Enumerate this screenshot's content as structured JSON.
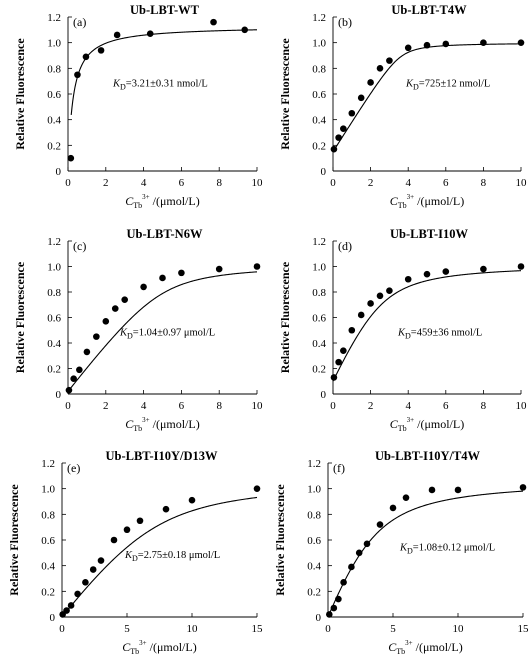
{
  "chart_data": [
    {
      "type": "scatter",
      "panel_letter": "(a)",
      "title": "Ub-LBT-WT",
      "annotation": {
        "kd_symbol": "K",
        "kd_sub": "D",
        "kd_value": "=3.21±0.31 nmol/L"
      },
      "ylabel": "Relative Fluorescence",
      "xlabel": {
        "c": "C",
        "sub": "Tb",
        "sup": "3+",
        "unit": " /(μmol/L)"
      },
      "xlim": [
        0,
        10
      ],
      "ylim": [
        0,
        1.2
      ],
      "xticks": [
        0,
        2,
        4,
        6,
        8,
        10
      ],
      "yticks": [
        0,
        0.2,
        0.4,
        0.6,
        0.8,
        1.0,
        1.2
      ],
      "ytick_labels": [
        "0",
        "0.2",
        "0.4",
        "0.6",
        "0.8",
        "1.0",
        "1.2"
      ],
      "fit": {
        "model": "hyperbolic",
        "ymax": 1.13,
        "kd": 0.27,
        "x_start": 0.17
      },
      "series": [
        {
          "x": [
            0.15,
            0.5,
            0.95,
            1.75,
            2.6,
            4.35,
            7.7,
            9.35
          ],
          "y": [
            0.1,
            0.75,
            0.89,
            0.94,
            1.06,
            1.07,
            1.16,
            1.1
          ]
        }
      ]
    },
    {
      "type": "scatter",
      "panel_letter": "(b)",
      "title": "Ub-LBT-T4W",
      "annotation": {
        "kd_symbol": "K",
        "kd_sub": "D",
        "kd_value": "=725±12 nmol/L"
      },
      "ylabel": "Relative Fluorescence",
      "xlabel": {
        "c": "C",
        "sub": "Tb",
        "sup": "3+",
        "unit": " /(μmol/L)"
      },
      "xlim": [
        0,
        10
      ],
      "ylim": [
        0,
        1.2
      ],
      "xticks": [
        0,
        2,
        4,
        6,
        8,
        10
      ],
      "yticks": [
        0,
        0.2,
        0.4,
        0.6,
        0.8,
        1.0,
        1.2
      ],
      "ytick_labels": [
        "0",
        "0.2",
        "0.4",
        "0.6",
        "0.8",
        "1.0",
        "1.2"
      ],
      "fit": {
        "model": "tight",
        "ymin": 0.15,
        "ymax": 1.0,
        "kd": 0.07,
        "p": 3.6,
        "x_start": 0
      },
      "series": [
        {
          "x": [
            0.05,
            0.3,
            0.55,
            1.0,
            1.5,
            2.0,
            2.5,
            3.0,
            4.0,
            5.0,
            6.0,
            8.0,
            10.0
          ],
          "y": [
            0.17,
            0.26,
            0.33,
            0.45,
            0.57,
            0.69,
            0.8,
            0.86,
            0.96,
            0.98,
            0.99,
            1.0,
            1.0
          ]
        }
      ]
    },
    {
      "type": "scatter",
      "panel_letter": "(c)",
      "title": "Ub-LBT-N6W",
      "annotation": {
        "kd_symbol": "K",
        "kd_sub": "D",
        "kd_value": "=1.04±0.97 μmol/L"
      },
      "ylabel": "Relative Fluorescence",
      "xlabel": {
        "c": "C",
        "sub": "Tb",
        "sup": "3+",
        "unit": " /(μmol/L)"
      },
      "xlim": [
        0,
        10
      ],
      "ylim": [
        0,
        1.2
      ],
      "xticks": [
        0,
        2,
        4,
        6,
        8,
        10
      ],
      "yticks": [
        0,
        0.2,
        0.4,
        0.6,
        0.8,
        1.0,
        1.2
      ],
      "ytick_labels": [
        "0",
        "0.2",
        "0.4",
        "0.6",
        "0.8",
        "1.0",
        "1.2"
      ],
      "fit": {
        "model": "tight",
        "ymin": 0.02,
        "ymax": 1.02,
        "kd": 0.35,
        "p": 5.0,
        "x_start": 0
      },
      "series": [
        {
          "x": [
            0.05,
            0.3,
            0.6,
            1.0,
            1.5,
            2.0,
            2.5,
            3.0,
            4.0,
            5.0,
            6.0,
            8.0,
            10.0
          ],
          "y": [
            0.03,
            0.12,
            0.19,
            0.33,
            0.45,
            0.57,
            0.67,
            0.74,
            0.84,
            0.91,
            0.95,
            0.98,
            1.0
          ]
        }
      ]
    },
    {
      "type": "scatter",
      "panel_letter": "(d)",
      "title": "Ub-LBT-I10W",
      "annotation": {
        "kd_symbol": "K",
        "kd_sub": "D",
        "kd_value": "=459±36 nmol/L"
      },
      "ylabel": "Relative Fluorescence",
      "xlabel": {
        "c": "C",
        "sub": "Tb",
        "sup": "3+",
        "unit": " /(μmol/L)"
      },
      "xlim": [
        0,
        10
      ],
      "ylim": [
        0,
        1.2
      ],
      "xticks": [
        0,
        2,
        4,
        6,
        8,
        10
      ],
      "yticks": [
        0,
        0.2,
        0.4,
        0.6,
        0.8,
        1.0,
        1.2
      ],
      "ytick_labels": [
        "0",
        "0.2",
        "0.4",
        "0.6",
        "0.8",
        "1.0",
        "1.2"
      ],
      "fit": {
        "model": "tight",
        "ymin": 0.1,
        "ymax": 1.02,
        "kd": 0.46,
        "p": 2.6,
        "x_start": 0
      },
      "series": [
        {
          "x": [
            0.05,
            0.3,
            0.55,
            1.0,
            1.5,
            2.0,
            2.5,
            3.0,
            4.0,
            5.0,
            6.0,
            8.0,
            10.0
          ],
          "y": [
            0.13,
            0.25,
            0.34,
            0.5,
            0.62,
            0.71,
            0.77,
            0.81,
            0.9,
            0.94,
            0.96,
            0.98,
            1.0
          ]
        }
      ]
    },
    {
      "type": "scatter",
      "panel_letter": "(e)",
      "title": "Ub-LBT-I10Y/D13W",
      "annotation": {
        "kd_symbol": "K",
        "kd_sub": "D",
        "kd_value": "=2.75±0.18 μmol/L"
      },
      "ylabel": "Relative Fluorescence",
      "xlabel": {
        "c": "C",
        "sub": "Tb",
        "sup": "3+",
        "unit": " /(μmol/L)"
      },
      "xlim": [
        0,
        15
      ],
      "ylim": [
        0,
        1.2
      ],
      "xticks": [
        0,
        5,
        10,
        15
      ],
      "yticks": [
        0,
        0.2,
        0.4,
        0.6,
        0.8,
        1.0,
        1.2
      ],
      "ytick_labels": [
        "0",
        "0.2",
        "0.4",
        "0.6",
        "0.8",
        "1.0",
        "1.2"
      ],
      "fit": {
        "model": "tight",
        "ymin": 0.0,
        "ymax": 1.07,
        "kd": 1.3,
        "p": 7.2,
        "x_start": 0
      },
      "series": [
        {
          "x": [
            0.05,
            0.35,
            0.7,
            1.2,
            1.8,
            2.4,
            3.0,
            4.0,
            5.0,
            6.0,
            8.0,
            10.0,
            15.0
          ],
          "y": [
            0.02,
            0.05,
            0.09,
            0.18,
            0.27,
            0.37,
            0.44,
            0.6,
            0.68,
            0.75,
            0.84,
            0.91,
            1.0
          ]
        }
      ]
    },
    {
      "type": "scatter",
      "panel_letter": "(f)",
      "title": "Ub-LBT-I10Y/T4W",
      "annotation": {
        "kd_symbol": "K",
        "kd_sub": "D",
        "kd_value": "=1.08±0.12 μmol/L"
      },
      "ylabel": "Relative Fluorescence",
      "xlabel": {
        "c": "C",
        "sub": "Tb",
        "sup": "3+",
        "unit": " /(μmol/L)"
      },
      "xlim": [
        0,
        15
      ],
      "ylim": [
        0,
        1.2
      ],
      "xticks": [
        0,
        5,
        10,
        15
      ],
      "yticks": [
        0,
        0.2,
        0.4,
        0.6,
        0.8,
        1.0,
        1.2
      ],
      "ytick_labels": [
        "0",
        "0.2",
        "0.4",
        "0.6",
        "0.8",
        "1.0",
        "1.2"
      ],
      "fit": {
        "model": "tight",
        "ymin": 0.0,
        "ymax": 1.07,
        "kd": 1.08,
        "p": 3.4,
        "x_start": 0
      },
      "series": [
        {
          "x": [
            0.1,
            0.45,
            0.8,
            1.2,
            1.8,
            2.4,
            3.0,
            4.0,
            5.0,
            6.0,
            8.0,
            10.0,
            15.0
          ],
          "y": [
            0.02,
            0.07,
            0.14,
            0.27,
            0.39,
            0.5,
            0.57,
            0.72,
            0.85,
            0.93,
            0.99,
            0.99,
            1.01
          ]
        }
      ]
    }
  ]
}
